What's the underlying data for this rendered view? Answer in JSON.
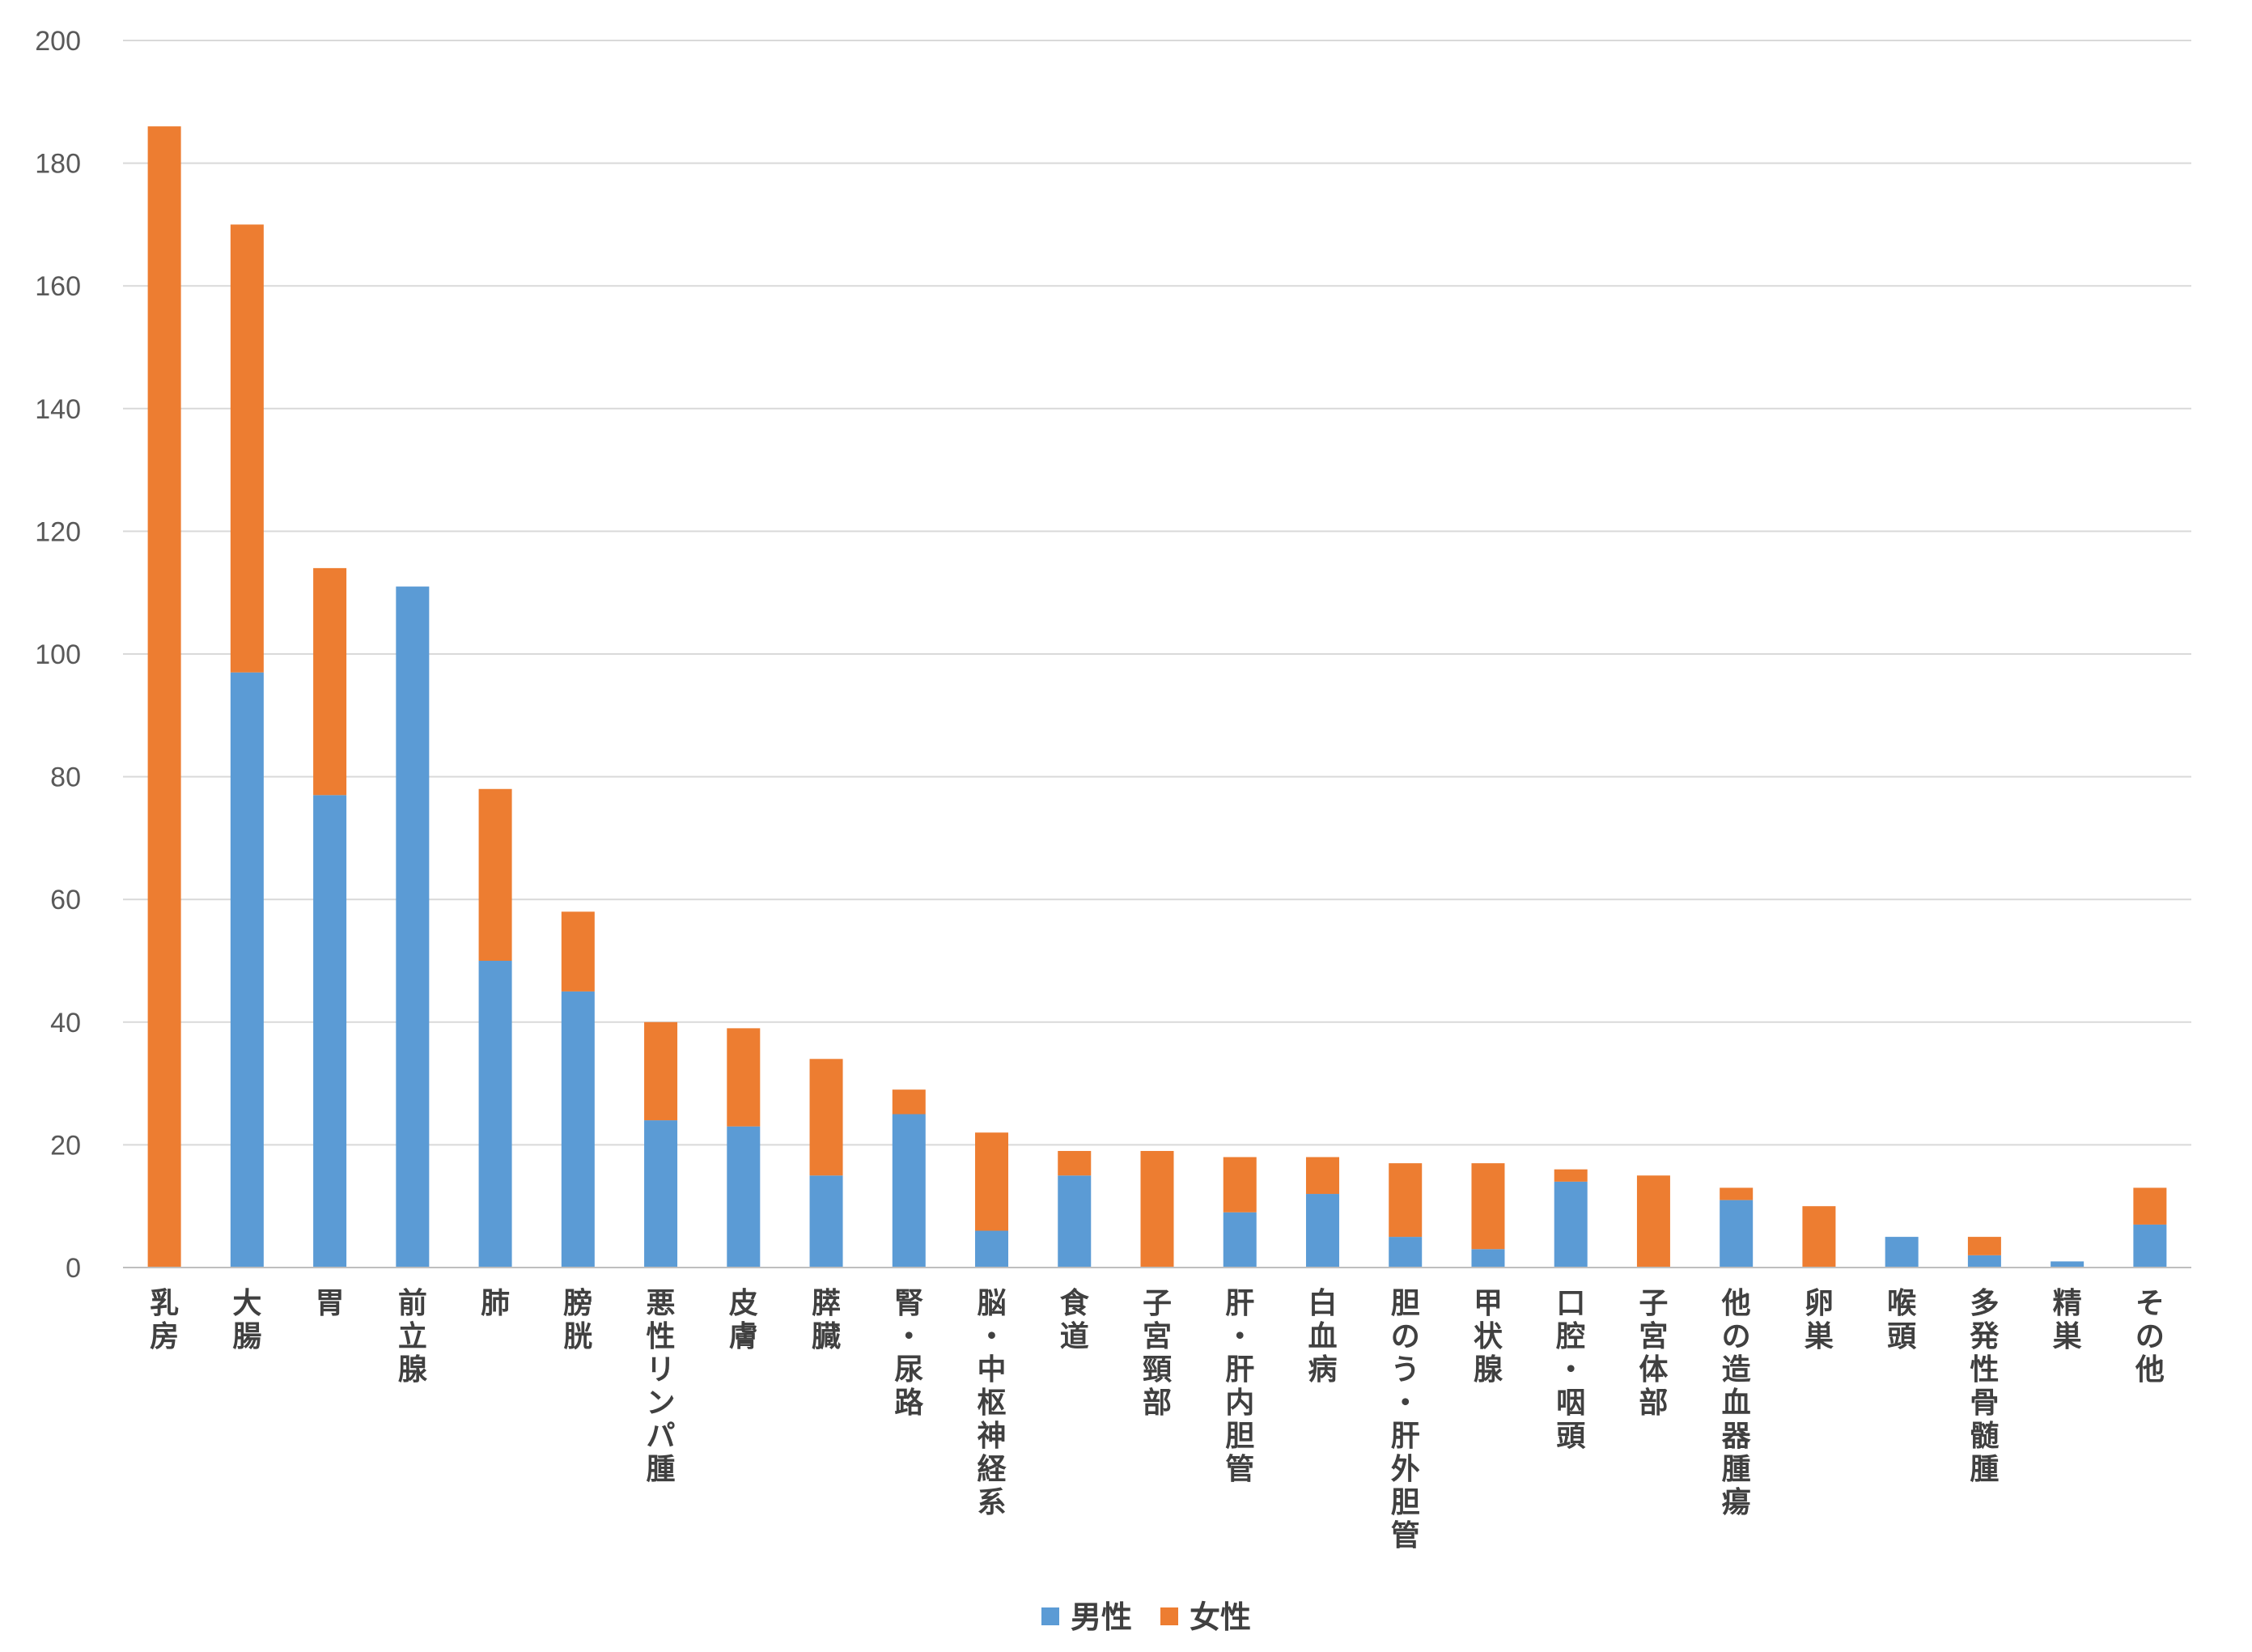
{
  "chart_data": {
    "type": "bar",
    "stacked": true,
    "title": "",
    "xlabel": "",
    "ylabel": "",
    "ylim": [
      0,
      200
    ],
    "yticks": [
      0,
      20,
      40,
      60,
      80,
      100,
      120,
      140,
      160,
      180,
      200
    ],
    "grid": true,
    "legend": "bottom-center",
    "categories": [
      "乳房",
      "大腸",
      "胃",
      "前立腺",
      "肺",
      "膀胱",
      "悪性リンパ腫",
      "皮膚",
      "膵臓",
      "腎・尿路",
      "脳・中枢神経系",
      "食道",
      "子宮頸部",
      "肝・肝内胆管",
      "白血病",
      "胆のう・肝外胆管",
      "甲状腺",
      "口腔・咽頭",
      "子宮体部",
      "他の造血器腫瘍",
      "卵巣",
      "喉頭",
      "多発性骨髄腫",
      "精巣",
      "その他"
    ],
    "series": [
      {
        "name": "男性",
        "color": "#5b9bd5",
        "values": [
          0,
          97,
          77,
          111,
          50,
          45,
          24,
          23,
          15,
          25,
          6,
          15,
          0,
          9,
          12,
          5,
          3,
          14,
          0,
          11,
          0,
          5,
          2,
          1,
          7
        ]
      },
      {
        "name": "女性",
        "color": "#ed7d31",
        "values": [
          186,
          73,
          37,
          0,
          28,
          13,
          16,
          16,
          19,
          4,
          16,
          4,
          19,
          9,
          6,
          12,
          14,
          2,
          15,
          2,
          10,
          0,
          3,
          0,
          6
        ]
      }
    ]
  }
}
